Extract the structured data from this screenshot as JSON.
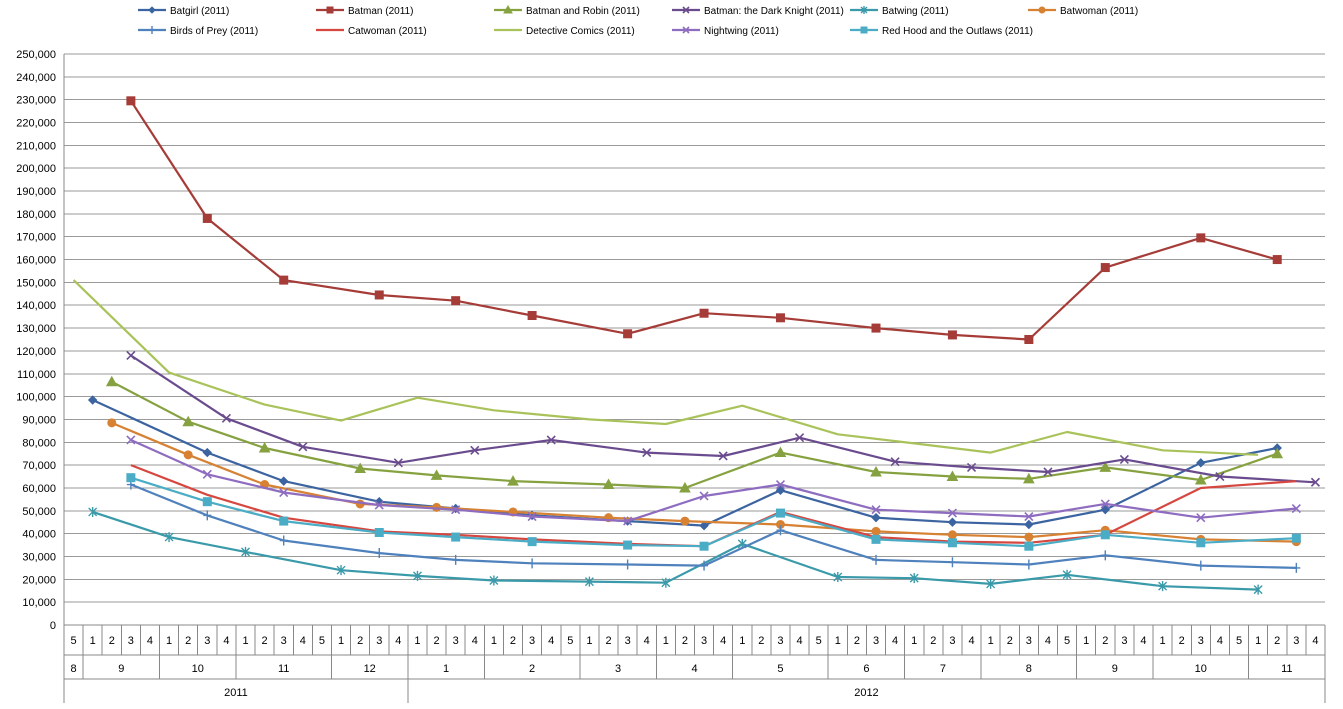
{
  "chart_data": {
    "type": "line",
    "title": "",
    "xlabel": "",
    "ylabel": "",
    "ylim": [
      0,
      250000
    ],
    "yticks": [
      "0",
      "10,000",
      "20,000",
      "30,000",
      "40,000",
      "50,000",
      "60,000",
      "70,000",
      "80,000",
      "90,000",
      "100,000",
      "110,000",
      "120,000",
      "130,000",
      "140,000",
      "150,000",
      "160,000",
      "170,000",
      "180,000",
      "190,000",
      "200,000",
      "210,000",
      "220,000",
      "230,000",
      "240,000",
      "250,000"
    ],
    "grid": true,
    "legend_position": "top",
    "x_axis": {
      "weeks": [
        "5",
        "1",
        "2",
        "3",
        "4",
        "1",
        "2",
        "3",
        "4",
        "1",
        "2",
        "3",
        "4",
        "5",
        "1",
        "2",
        "3",
        "4",
        "1",
        "2",
        "3",
        "4",
        "1",
        "2",
        "3",
        "4",
        "5",
        "1",
        "2",
        "3",
        "4",
        "1",
        "2",
        "3",
        "4",
        "1",
        "2",
        "3",
        "4",
        "5",
        "1",
        "2",
        "3",
        "4",
        "1",
        "2",
        "3",
        "4",
        "1",
        "2",
        "3",
        "4",
        "5",
        "1",
        "2",
        "3",
        "4",
        "1",
        "2",
        "3",
        "4",
        "5",
        "1",
        "2",
        "3",
        "4"
      ],
      "months": [
        {
          "label": "8",
          "start": 0,
          "end": 0
        },
        {
          "label": "9",
          "start": 1,
          "end": 4
        },
        {
          "label": "10",
          "start": 5,
          "end": 8
        },
        {
          "label": "11",
          "start": 9,
          "end": 13
        },
        {
          "label": "12",
          "start": 14,
          "end": 17
        },
        {
          "label": "1",
          "start": 18,
          "end": 21
        },
        {
          "label": "2",
          "start": 22,
          "end": 26
        },
        {
          "label": "3",
          "start": 27,
          "end": 30
        },
        {
          "label": "4",
          "start": 31,
          "end": 34
        },
        {
          "label": "5",
          "start": 35,
          "end": 39
        },
        {
          "label": "6",
          "start": 40,
          "end": 43
        },
        {
          "label": "7",
          "start": 44,
          "end": 47
        },
        {
          "label": "8",
          "start": 48,
          "end": 52
        },
        {
          "label": "9",
          "start": 53,
          "end": 56
        },
        {
          "label": "10",
          "start": 57,
          "end": 61
        },
        {
          "label": "11",
          "start": 62,
          "end": 65
        }
      ],
      "years": [
        {
          "label": "2011",
          "start": 0,
          "end": 17
        },
        {
          "label": "2012",
          "start": 18,
          "end": 65
        }
      ]
    },
    "series": [
      {
        "name": "Batgirl (2011)",
        "color": "#3B64A0",
        "marker": "diamond",
        "points": [
          [
            1,
            98500
          ],
          [
            7,
            75500
          ],
          [
            11,
            63000
          ],
          [
            16,
            54000
          ],
          [
            20,
            51000
          ],
          [
            24,
            48000
          ],
          [
            29,
            45500
          ],
          [
            33,
            43500
          ],
          [
            37,
            59000
          ],
          [
            42,
            47000
          ],
          [
            46,
            45000
          ],
          [
            50,
            44000
          ],
          [
            54,
            50500
          ],
          [
            59,
            71000
          ],
          [
            63,
            77500
          ]
        ]
      },
      {
        "name": "Batman (2011)",
        "color": "#A63C38",
        "marker": "square",
        "points": [
          [
            3,
            229500
          ],
          [
            7,
            178000
          ],
          [
            11,
            151000
          ],
          [
            16,
            144500
          ],
          [
            20,
            142000
          ],
          [
            24,
            135500
          ],
          [
            29,
            127500
          ],
          [
            33,
            136500
          ],
          [
            37,
            134500
          ],
          [
            42,
            130000
          ],
          [
            46,
            127000
          ],
          [
            50,
            125000
          ],
          [
            54,
            156500
          ],
          [
            59,
            169500
          ],
          [
            63,
            160000
          ]
        ]
      },
      {
        "name": "Batman and Robin (2011)",
        "color": "#86A240",
        "marker": "triangle",
        "points": [
          [
            2,
            106500
          ],
          [
            6,
            89000
          ],
          [
            10,
            77500
          ],
          [
            15,
            68500
          ],
          [
            19,
            65500
          ],
          [
            23,
            63000
          ],
          [
            28,
            61500
          ],
          [
            32,
            60000
          ],
          [
            37,
            75500
          ],
          [
            42,
            67000
          ],
          [
            46,
            65000
          ],
          [
            50,
            64000
          ],
          [
            54,
            69000
          ],
          [
            59,
            63500
          ],
          [
            63,
            75000
          ]
        ]
      },
      {
        "name": "Batman: the Dark Knight (2011)",
        "color": "#6A4C8E",
        "marker": "x",
        "points": [
          [
            3,
            118000
          ],
          [
            8,
            90500
          ],
          [
            12,
            78000
          ],
          [
            17,
            71000
          ],
          [
            21,
            76500
          ],
          [
            25,
            81000
          ],
          [
            30,
            75500
          ],
          [
            34,
            74000
          ],
          [
            38,
            82000
          ],
          [
            43,
            71500
          ],
          [
            47,
            69000
          ],
          [
            51,
            67000
          ],
          [
            55,
            72500
          ],
          [
            60,
            65000
          ],
          [
            65,
            62500
          ]
        ]
      },
      {
        "name": "Batwing (2011)",
        "color": "#3A9AAA",
        "marker": "asterisk",
        "points": [
          [
            1,
            49500
          ],
          [
            5,
            38500
          ],
          [
            9,
            32000
          ],
          [
            14,
            24000
          ],
          [
            18,
            21500
          ],
          [
            22,
            19500
          ],
          [
            27,
            19000
          ],
          [
            31,
            18500
          ],
          [
            35,
            35500
          ],
          [
            40,
            21000
          ],
          [
            44,
            20500
          ],
          [
            48,
            18000
          ],
          [
            52,
            22000
          ],
          [
            57,
            17000
          ],
          [
            62,
            15500
          ]
        ]
      },
      {
        "name": "Batwoman (2011)",
        "color": "#D78133",
        "marker": "circle",
        "points": [
          [
            2,
            88500
          ],
          [
            6,
            74500
          ],
          [
            10,
            61500
          ],
          [
            15,
            53000
          ],
          [
            19,
            51500
          ],
          [
            23,
            49500
          ],
          [
            28,
            47000
          ],
          [
            32,
            45500
          ],
          [
            37,
            44000
          ],
          [
            42,
            41000
          ],
          [
            46,
            39500
          ],
          [
            50,
            38500
          ],
          [
            54,
            41500
          ],
          [
            59,
            37500
          ],
          [
            64,
            36500
          ]
        ]
      },
      {
        "name": "Birds of Prey (2011)",
        "color": "#4F81BD",
        "marker": "plus",
        "points": [
          [
            3,
            61500
          ],
          [
            7,
            48000
          ],
          [
            11,
            37000
          ],
          [
            16,
            31500
          ],
          [
            20,
            28500
          ],
          [
            24,
            27000
          ],
          [
            29,
            26500
          ],
          [
            33,
            26000
          ],
          [
            37,
            41500
          ],
          [
            42,
            28500
          ],
          [
            46,
            27500
          ],
          [
            50,
            26500
          ],
          [
            54,
            30500
          ],
          [
            59,
            26000
          ],
          [
            64,
            25000
          ]
        ]
      },
      {
        "name": "Catwoman (2011)",
        "color": "#D64740",
        "marker": "none",
        "points": [
          [
            3,
            70000
          ],
          [
            7,
            57000
          ],
          [
            11,
            47000
          ],
          [
            16,
            41000
          ],
          [
            20,
            39500
          ],
          [
            24,
            37500
          ],
          [
            29,
            35500
          ],
          [
            33,
            34500
          ],
          [
            37,
            49500
          ],
          [
            42,
            38500
          ],
          [
            46,
            36500
          ],
          [
            50,
            36000
          ],
          [
            54,
            39500
          ],
          [
            59,
            60000
          ],
          [
            64,
            63000
          ]
        ]
      },
      {
        "name": "Detective Comics (2011)",
        "color": "#A9C35A",
        "marker": "none",
        "points": [
          [
            0,
            151000
          ],
          [
            5,
            110500
          ],
          [
            10,
            96500
          ],
          [
            14,
            89500
          ],
          [
            18,
            99500
          ],
          [
            22,
            94000
          ],
          [
            27,
            90000
          ],
          [
            31,
            88000
          ],
          [
            35,
            96000
          ],
          [
            40,
            83500
          ],
          [
            44,
            79500
          ],
          [
            48,
            75500
          ],
          [
            52,
            84500
          ],
          [
            57,
            76500
          ],
          [
            62,
            74500
          ]
        ]
      },
      {
        "name": "Nightwing (2011)",
        "color": "#8E6CC0",
        "marker": "x",
        "points": [
          [
            3,
            81000
          ],
          [
            7,
            66000
          ],
          [
            11,
            58000
          ],
          [
            16,
            52500
          ],
          [
            20,
            50500
          ],
          [
            24,
            47500
          ],
          [
            29,
            45500
          ],
          [
            33,
            56500
          ],
          [
            37,
            61500
          ],
          [
            42,
            50500
          ],
          [
            46,
            49000
          ],
          [
            50,
            47500
          ],
          [
            54,
            53000
          ],
          [
            59,
            47000
          ],
          [
            64,
            51000
          ]
        ]
      },
      {
        "name": "Red Hood and the Outlaws (2011)",
        "color": "#4BACC6",
        "marker": "square",
        "points": [
          [
            3,
            64500
          ],
          [
            7,
            54000
          ],
          [
            11,
            45500
          ],
          [
            16,
            40500
          ],
          [
            20,
            38500
          ],
          [
            24,
            36500
          ],
          [
            29,
            35000
          ],
          [
            33,
            34500
          ],
          [
            37,
            49000
          ],
          [
            42,
            37500
          ],
          [
            46,
            36000
          ],
          [
            50,
            34500
          ],
          [
            54,
            39500
          ],
          [
            59,
            36000
          ],
          [
            64,
            38000
          ]
        ]
      }
    ]
  }
}
